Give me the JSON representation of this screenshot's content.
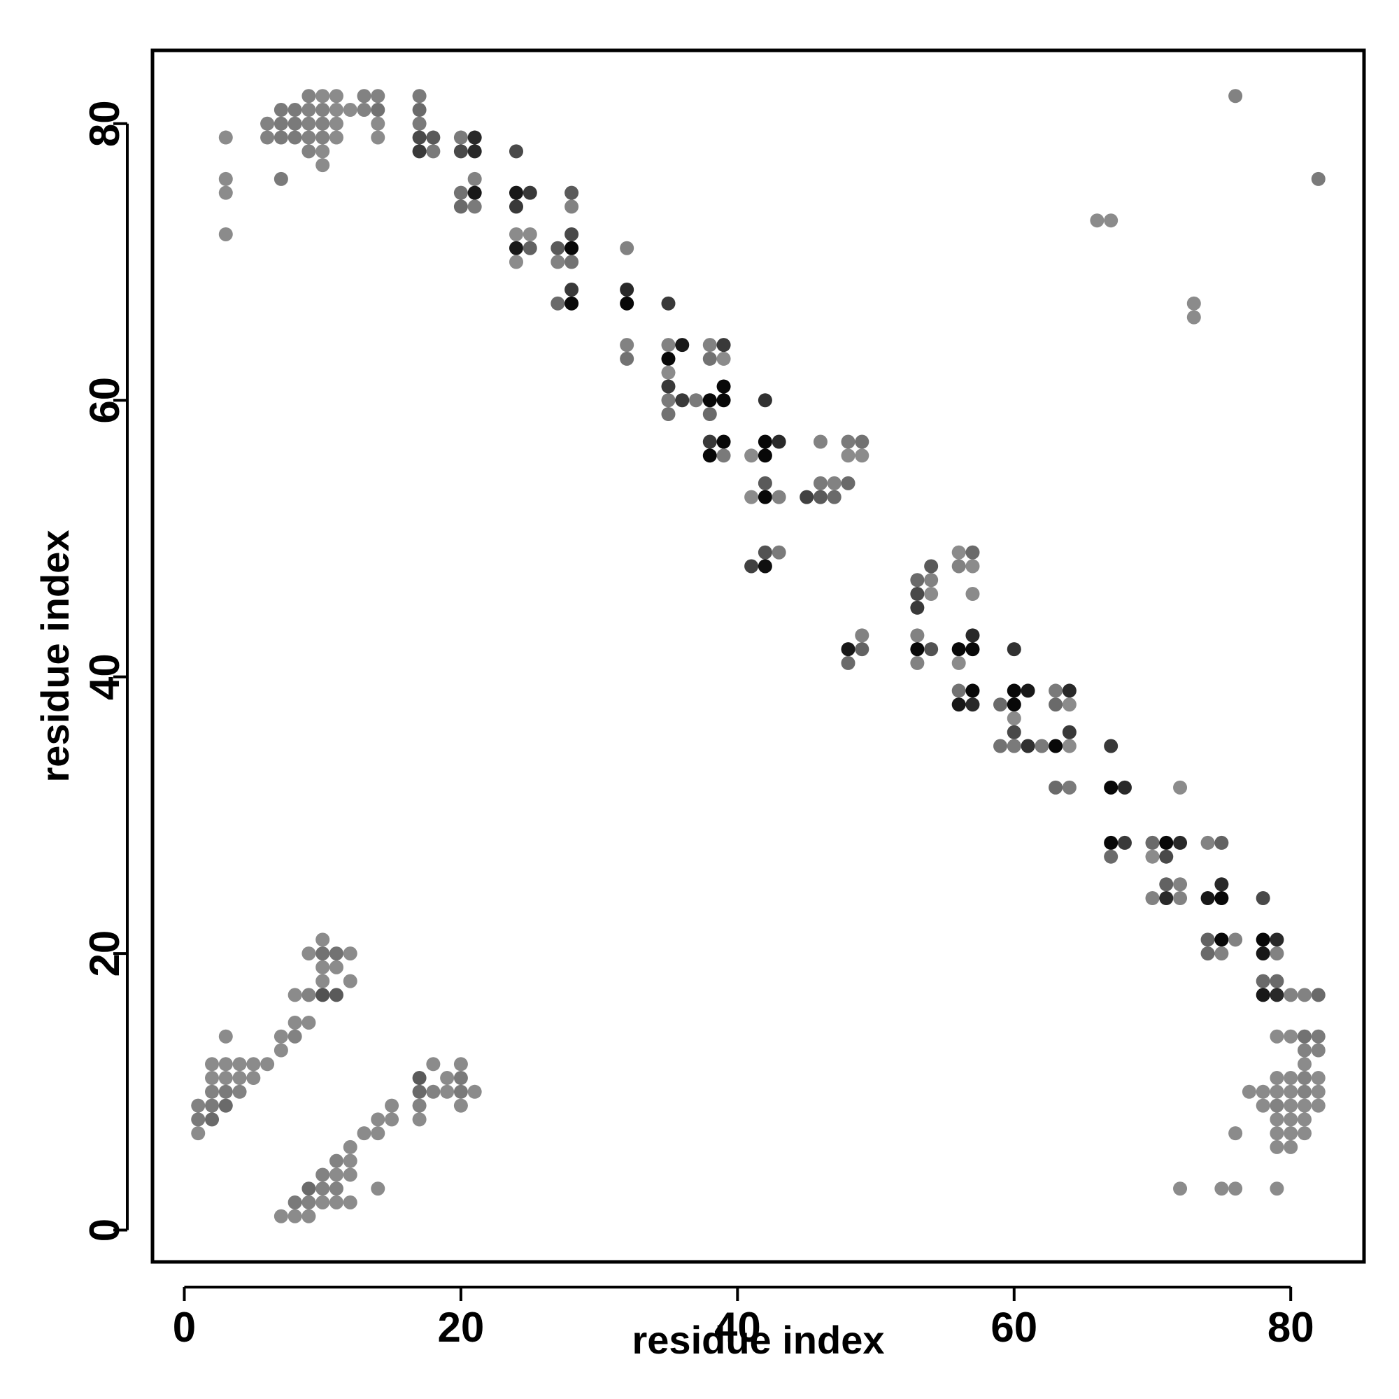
{
  "chart_data": {
    "type": "scatter",
    "title": "",
    "xlabel": "residue index",
    "ylabel": "residue index",
    "xlim": [
      -2.3,
      85.3
    ],
    "ylim": [
      -2.3,
      85.3
    ],
    "xticks": [
      0,
      20,
      40,
      60,
      80
    ],
    "yticks": [
      0,
      20,
      40,
      60,
      80
    ],
    "grid": false,
    "legend": "none",
    "color_scale": {
      "description": "point darkness encodes contact strength",
      "low": "#a3a3a3",
      "high": "#000000"
    },
    "points": [
      [
        3,
        79,
        0.15
      ],
      [
        3,
        76,
        0.15
      ],
      [
        3,
        75,
        0.15
      ],
      [
        3,
        72,
        0.15
      ],
      [
        6,
        80,
        0.2
      ],
      [
        6,
        79,
        0.2
      ],
      [
        7,
        81,
        0.25
      ],
      [
        7,
        80,
        0.25
      ],
      [
        7,
        79,
        0.25
      ],
      [
        7,
        76,
        0.25
      ],
      [
        8,
        81,
        0.25
      ],
      [
        8,
        80,
        0.25
      ],
      [
        8,
        79,
        0.25
      ],
      [
        9,
        82,
        0.2
      ],
      [
        9,
        81,
        0.2
      ],
      [
        9,
        80,
        0.2
      ],
      [
        9,
        79,
        0.2
      ],
      [
        9,
        78,
        0.2
      ],
      [
        10,
        82,
        0.15
      ],
      [
        10,
        81,
        0.2
      ],
      [
        10,
        80,
        0.2
      ],
      [
        10,
        79,
        0.2
      ],
      [
        10,
        78,
        0.15
      ],
      [
        10,
        77,
        0.15
      ],
      [
        11,
        82,
        0.15
      ],
      [
        11,
        81,
        0.15
      ],
      [
        11,
        80,
        0.15
      ],
      [
        11,
        79,
        0.15
      ],
      [
        12,
        81,
        0.15
      ],
      [
        13,
        82,
        0.2
      ],
      [
        13,
        81,
        0.2
      ],
      [
        14,
        82,
        0.2
      ],
      [
        14,
        81,
        0.3
      ],
      [
        14,
        80,
        0.15
      ],
      [
        14,
        79,
        0.15
      ],
      [
        17,
        82,
        0.25
      ],
      [
        17,
        81,
        0.35
      ],
      [
        17,
        80,
        0.25
      ],
      [
        17,
        79,
        0.55
      ],
      [
        17,
        78,
        0.65
      ],
      [
        18,
        79,
        0.45
      ],
      [
        18,
        78,
        0.25
      ],
      [
        20,
        79,
        0.25
      ],
      [
        20,
        78,
        0.55
      ],
      [
        21,
        79,
        0.75
      ],
      [
        21,
        78,
        0.75
      ],
      [
        21,
        76,
        0.2
      ],
      [
        20,
        75,
        0.3
      ],
      [
        20,
        74,
        0.35
      ],
      [
        21,
        75,
        0.85
      ],
      [
        21,
        74,
        0.25
      ],
      [
        24,
        78,
        0.55
      ],
      [
        24,
        75,
        0.85
      ],
      [
        24,
        74,
        0.65
      ],
      [
        25,
        75,
        0.65
      ],
      [
        24,
        72,
        0.15
      ],
      [
        25,
        72,
        0.15
      ],
      [
        24,
        71,
        0.85
      ],
      [
        25,
        71,
        0.4
      ],
      [
        24,
        70,
        0.15
      ],
      [
        27,
        71,
        0.45
      ],
      [
        28,
        75,
        0.45
      ],
      [
        28,
        74,
        0.2
      ],
      [
        28,
        72,
        0.55
      ],
      [
        28,
        71,
        0.95
      ],
      [
        27,
        70,
        0.2
      ],
      [
        28,
        70,
        0.3
      ],
      [
        27,
        67,
        0.35
      ],
      [
        28,
        68,
        0.65
      ],
      [
        28,
        67,
        0.95
      ],
      [
        32,
        71,
        0.2
      ],
      [
        32,
        68,
        0.75
      ],
      [
        32,
        67,
        0.95
      ],
      [
        32,
        64,
        0.2
      ],
      [
        32,
        63,
        0.3
      ],
      [
        35,
        67,
        0.65
      ],
      [
        35,
        64,
        0.2
      ],
      [
        36,
        64,
        0.85
      ],
      [
        35,
        63,
        0.95
      ],
      [
        35,
        62,
        0.15
      ],
      [
        35,
        61,
        0.65
      ],
      [
        35,
        60,
        0.25
      ],
      [
        36,
        60,
        0.65
      ],
      [
        37,
        60,
        0.25
      ],
      [
        35,
        59,
        0.3
      ],
      [
        38,
        64,
        0.2
      ],
      [
        39,
        64,
        0.65
      ],
      [
        38,
        63,
        0.3
      ],
      [
        39,
        63,
        0.15
      ],
      [
        39,
        61,
        0.95
      ],
      [
        38,
        60,
        0.95
      ],
      [
        39,
        60,
        0.95
      ],
      [
        38,
        59,
        0.35
      ],
      [
        38,
        57,
        0.65
      ],
      [
        39,
        57,
        0.95
      ],
      [
        38,
        56,
        0.95
      ],
      [
        39,
        56,
        0.25
      ],
      [
        42,
        60,
        0.7
      ],
      [
        41,
        56,
        0.15
      ],
      [
        42,
        57,
        0.95
      ],
      [
        43,
        57,
        0.75
      ],
      [
        42,
        56,
        0.95
      ],
      [
        41,
        53,
        0.15
      ],
      [
        42,
        54,
        0.45
      ],
      [
        42,
        53,
        0.95
      ],
      [
        43,
        53,
        0.2
      ],
      [
        42,
        49,
        0.5
      ],
      [
        43,
        49,
        0.25
      ],
      [
        41,
        48,
        0.6
      ],
      [
        42,
        48,
        0.9
      ],
      [
        45,
        53,
        0.6
      ],
      [
        46,
        57,
        0.2
      ],
      [
        46,
        54,
        0.25
      ],
      [
        46,
        53,
        0.45
      ],
      [
        47,
        54,
        0.2
      ],
      [
        47,
        53,
        0.35
      ],
      [
        48,
        54,
        0.35
      ],
      [
        48,
        57,
        0.25
      ],
      [
        49,
        57,
        0.3
      ],
      [
        48,
        56,
        0.15
      ],
      [
        49,
        56,
        0.15
      ],
      [
        48,
        42,
        0.85
      ],
      [
        48,
        41,
        0.35
      ],
      [
        49,
        43,
        0.2
      ],
      [
        49,
        42,
        0.4
      ],
      [
        53,
        47,
        0.35
      ],
      [
        54,
        48,
        0.45
      ],
      [
        53,
        46,
        0.55
      ],
      [
        54,
        47,
        0.2
      ],
      [
        54,
        46,
        0.15
      ],
      [
        53,
        45,
        0.65
      ],
      [
        53,
        43,
        0.2
      ],
      [
        53,
        42,
        0.95
      ],
      [
        54,
        42,
        0.5
      ],
      [
        53,
        41,
        0.2
      ],
      [
        56,
        49,
        0.15
      ],
      [
        57,
        49,
        0.35
      ],
      [
        56,
        48,
        0.2
      ],
      [
        57,
        48,
        0.15
      ],
      [
        57,
        46,
        0.15
      ],
      [
        57,
        43,
        0.75
      ],
      [
        56,
        42,
        0.95
      ],
      [
        57,
        42,
        0.95
      ],
      [
        56,
        41,
        0.15
      ],
      [
        56,
        39,
        0.3
      ],
      [
        57,
        39,
        0.95
      ],
      [
        56,
        38,
        0.85
      ],
      [
        57,
        38,
        0.75
      ],
      [
        60,
        42,
        0.7
      ],
      [
        59,
        38,
        0.35
      ],
      [
        60,
        39,
        0.95
      ],
      [
        61,
        39,
        0.85
      ],
      [
        60,
        38,
        0.95
      ],
      [
        60,
        37,
        0.15
      ],
      [
        60,
        36,
        0.55
      ],
      [
        59,
        35,
        0.3
      ],
      [
        60,
        35,
        0.25
      ],
      [
        61,
        35,
        0.7
      ],
      [
        62,
        35,
        0.25
      ],
      [
        63,
        39,
        0.25
      ],
      [
        64,
        39,
        0.75
      ],
      [
        63,
        38,
        0.35
      ],
      [
        64,
        38,
        0.15
      ],
      [
        64,
        36,
        0.65
      ],
      [
        63,
        35,
        0.95
      ],
      [
        64,
        35,
        0.15
      ],
      [
        63,
        32,
        0.35
      ],
      [
        64,
        32,
        0.25
      ],
      [
        67,
        35,
        0.65
      ],
      [
        67,
        32,
        0.95
      ],
      [
        68,
        32,
        0.75
      ],
      [
        67,
        28,
        0.95
      ],
      [
        68,
        28,
        0.65
      ],
      [
        67,
        27,
        0.35
      ],
      [
        70,
        28,
        0.35
      ],
      [
        71,
        28,
        0.95
      ],
      [
        72,
        28,
        0.75
      ],
      [
        70,
        27,
        0.15
      ],
      [
        71,
        27,
        0.55
      ],
      [
        71,
        25,
        0.4
      ],
      [
        72,
        25,
        0.2
      ],
      [
        70,
        24,
        0.2
      ],
      [
        71,
        24,
        0.75
      ],
      [
        72,
        24,
        0.2
      ],
      [
        72,
        32,
        0.15
      ],
      [
        74,
        28,
        0.2
      ],
      [
        75,
        28,
        0.4
      ],
      [
        75,
        25,
        0.75
      ],
      [
        74,
        24,
        0.85
      ],
      [
        75,
        24,
        0.95
      ],
      [
        74,
        21,
        0.4
      ],
      [
        75,
        21,
        0.95
      ],
      [
        76,
        21,
        0.2
      ],
      [
        74,
        20,
        0.35
      ],
      [
        75,
        20,
        0.2
      ],
      [
        78,
        24,
        0.55
      ],
      [
        78,
        21,
        0.95
      ],
      [
        79,
        21,
        0.75
      ],
      [
        78,
        20,
        0.85
      ],
      [
        79,
        20,
        0.2
      ],
      [
        78,
        18,
        0.35
      ],
      [
        79,
        18,
        0.35
      ],
      [
        78,
        17,
        0.85
      ],
      [
        79,
        17,
        0.75
      ],
      [
        80,
        17,
        0.2
      ],
      [
        81,
        17,
        0.2
      ],
      [
        82,
        17,
        0.35
      ],
      [
        79,
        14,
        0.15
      ],
      [
        80,
        14,
        0.15
      ],
      [
        81,
        14,
        0.3
      ],
      [
        82,
        14,
        0.25
      ],
      [
        81,
        13,
        0.2
      ],
      [
        82,
        13,
        0.2
      ],
      [
        81,
        12,
        0.15
      ],
      [
        79,
        11,
        0.15
      ],
      [
        80,
        11,
        0.15
      ],
      [
        81,
        11,
        0.2
      ],
      [
        82,
        11,
        0.15
      ],
      [
        77,
        10,
        0.15
      ],
      [
        78,
        10,
        0.15
      ],
      [
        79,
        10,
        0.15
      ],
      [
        80,
        10,
        0.15
      ],
      [
        81,
        10,
        0.2
      ],
      [
        82,
        10,
        0.15
      ],
      [
        78,
        9,
        0.15
      ],
      [
        79,
        9,
        0.2
      ],
      [
        80,
        9,
        0.15
      ],
      [
        81,
        9,
        0.15
      ],
      [
        82,
        9,
        0.15
      ],
      [
        79,
        8,
        0.15
      ],
      [
        80,
        8,
        0.15
      ],
      [
        81,
        8,
        0.15
      ],
      [
        79,
        7,
        0.15
      ],
      [
        80,
        7,
        0.15
      ],
      [
        81,
        7,
        0.15
      ],
      [
        79,
        6,
        0.15
      ],
      [
        80,
        6,
        0.15
      ],
      [
        76,
        7,
        0.15
      ],
      [
        72,
        3,
        0.15
      ],
      [
        75,
        3,
        0.15
      ],
      [
        76,
        3,
        0.15
      ],
      [
        79,
        3,
        0.15
      ],
      [
        66,
        73,
        0.15
      ],
      [
        67,
        73,
        0.15
      ],
      [
        73,
        67,
        0.15
      ],
      [
        73,
        66,
        0.15
      ],
      [
        76,
        82,
        0.2
      ],
      [
        82,
        76,
        0.25
      ],
      [
        1,
        9,
        0.2
      ],
      [
        1,
        8,
        0.25
      ],
      [
        1,
        7,
        0.15
      ],
      [
        2,
        12,
        0.15
      ],
      [
        2,
        11,
        0.15
      ],
      [
        2,
        10,
        0.2
      ],
      [
        2,
        9,
        0.25
      ],
      [
        2,
        8,
        0.35
      ],
      [
        3,
        14,
        0.15
      ],
      [
        3,
        12,
        0.15
      ],
      [
        3,
        11,
        0.15
      ],
      [
        3,
        10,
        0.25
      ],
      [
        3,
        9,
        0.35
      ],
      [
        4,
        12,
        0.15
      ],
      [
        4,
        11,
        0.15
      ],
      [
        4,
        10,
        0.2
      ],
      [
        5,
        12,
        0.15
      ],
      [
        5,
        11,
        0.15
      ],
      [
        6,
        12,
        0.15
      ],
      [
        7,
        14,
        0.15
      ],
      [
        7,
        13,
        0.15
      ],
      [
        8,
        15,
        0.15
      ],
      [
        8,
        14,
        0.2
      ],
      [
        9,
        15,
        0.15
      ],
      [
        8,
        17,
        0.15
      ],
      [
        9,
        20,
        0.15
      ],
      [
        9,
        17,
        0.2
      ],
      [
        10,
        21,
        0.15
      ],
      [
        10,
        20,
        0.3
      ],
      [
        10,
        19,
        0.15
      ],
      [
        10,
        18,
        0.15
      ],
      [
        10,
        17,
        0.5
      ],
      [
        11,
        20,
        0.3
      ],
      [
        11,
        19,
        0.15
      ],
      [
        11,
        17,
        0.45
      ],
      [
        12,
        20,
        0.15
      ],
      [
        12,
        18,
        0.15
      ],
      [
        7,
        1,
        0.15
      ],
      [
        8,
        1,
        0.15
      ],
      [
        8,
        2,
        0.25
      ],
      [
        9,
        1,
        0.15
      ],
      [
        9,
        2,
        0.2
      ],
      [
        9,
        3,
        0.35
      ],
      [
        10,
        2,
        0.15
      ],
      [
        10,
        3,
        0.2
      ],
      [
        10,
        4,
        0.2
      ],
      [
        11,
        2,
        0.15
      ],
      [
        11,
        3,
        0.2
      ],
      [
        11,
        4,
        0.15
      ],
      [
        11,
        5,
        0.2
      ],
      [
        12,
        2,
        0.15
      ],
      [
        12,
        4,
        0.15
      ],
      [
        12,
        5,
        0.15
      ],
      [
        12,
        6,
        0.15
      ],
      [
        13,
        7,
        0.15
      ],
      [
        14,
        7,
        0.15
      ],
      [
        14,
        8,
        0.15
      ],
      [
        14,
        3,
        0.15
      ],
      [
        15,
        8,
        0.15
      ],
      [
        15,
        9,
        0.15
      ],
      [
        17,
        8,
        0.15
      ],
      [
        17,
        9,
        0.2
      ],
      [
        17,
        10,
        0.35
      ],
      [
        17,
        11,
        0.45
      ],
      [
        18,
        12,
        0.15
      ],
      [
        18,
        10,
        0.2
      ],
      [
        19,
        11,
        0.15
      ],
      [
        19,
        10,
        0.15
      ],
      [
        20,
        12,
        0.15
      ],
      [
        20,
        11,
        0.25
      ],
      [
        20,
        10,
        0.25
      ],
      [
        20,
        9,
        0.15
      ],
      [
        21,
        10,
        0.15
      ]
    ]
  }
}
